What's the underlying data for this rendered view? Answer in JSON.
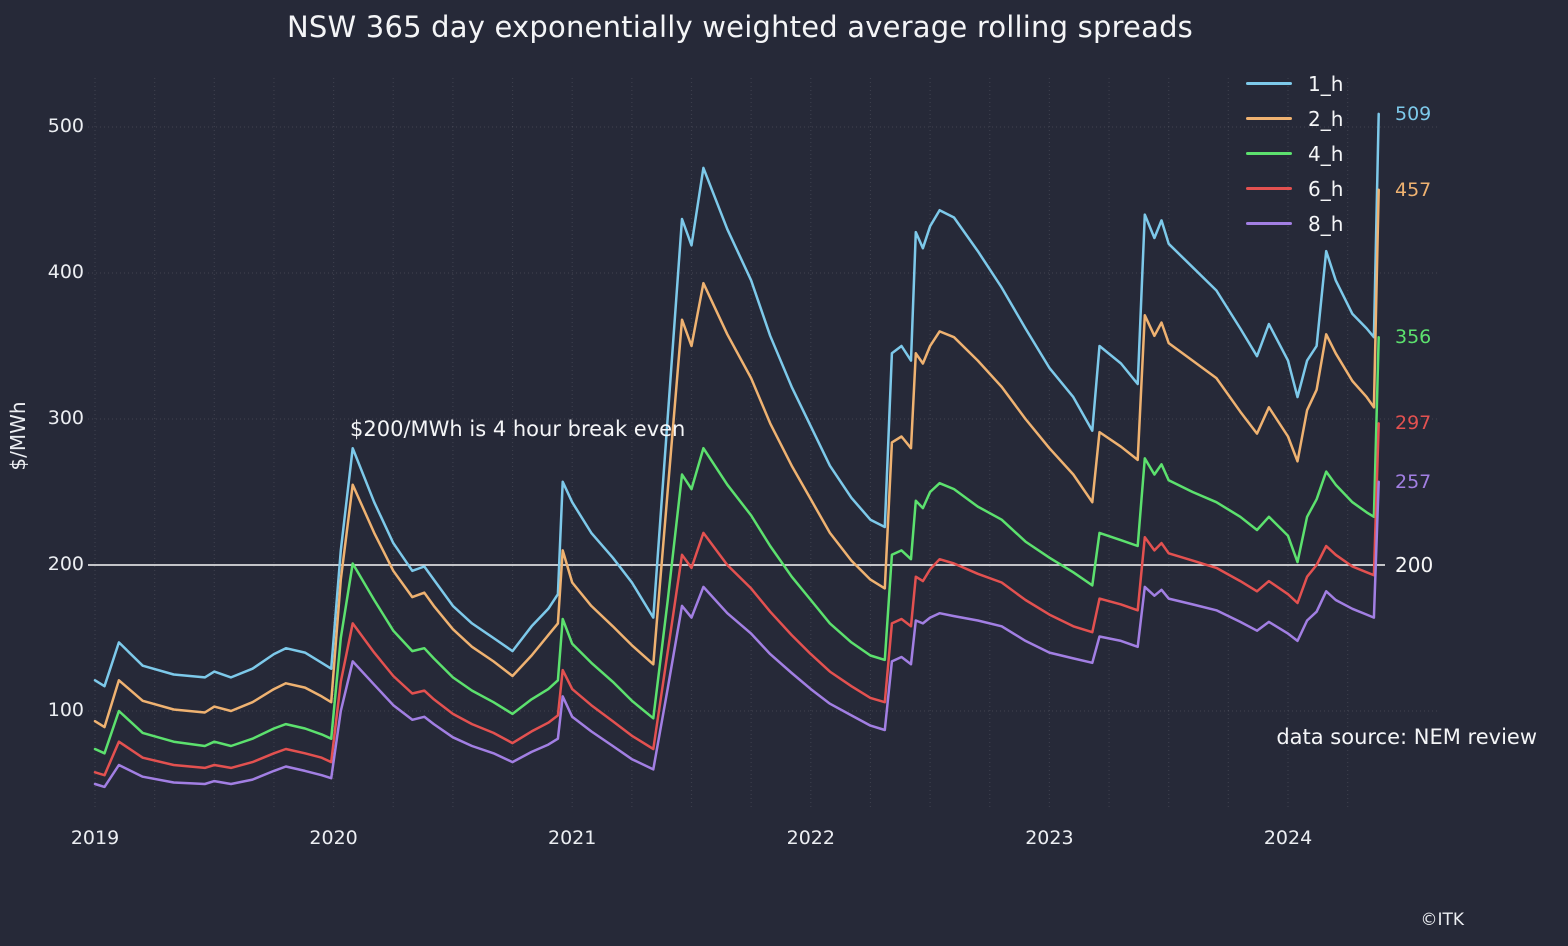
{
  "title": "NSW 365 day exponentially weighted average rolling spreads",
  "ylabel": "$/MWh",
  "annotation": "$200/MWh is 4 hour break even",
  "data_source": "data source: NEM review",
  "copyright": "©ITK",
  "threshold": {
    "value": 200,
    "label": "200",
    "color": "#f7f7f7"
  },
  "colors": {
    "background": "#262938",
    "text": "#f2f3f5",
    "grid": "rgba(255,255,255,0.10)"
  },
  "chart_data": {
    "type": "line",
    "title": "NSW 365 day exponentially weighted average rolling spreads",
    "xlabel": "",
    "ylabel": "$/MWh",
    "legend_position": "upper right",
    "grid": "dotted horizontal at yticks, dotted vertical quarterly",
    "xlim": [
      2018.95,
      2024.45
    ],
    "ylim": [
      40,
      545
    ],
    "yticks": [
      100,
      200,
      300,
      400,
      500
    ],
    "xticks": [
      2019,
      2020,
      2021,
      2022,
      2023,
      2024
    ],
    "reference_line": {
      "y": 200,
      "label": "200"
    },
    "x": [
      2019.0,
      2019.04,
      2019.1,
      2019.2,
      2019.33,
      2019.46,
      2019.5,
      2019.57,
      2019.66,
      2019.75,
      2019.8,
      2019.88,
      2019.95,
      2019.99,
      2020.03,
      2020.08,
      2020.17,
      2020.25,
      2020.33,
      2020.38,
      2020.42,
      2020.5,
      2020.58,
      2020.67,
      2020.75,
      2020.83,
      2020.9,
      2020.94,
      2020.96,
      2021.0,
      2021.08,
      2021.17,
      2021.25,
      2021.34,
      2021.4,
      2021.46,
      2021.5,
      2021.55,
      2021.65,
      2021.75,
      2021.83,
      2021.92,
      2022.0,
      2022.08,
      2022.17,
      2022.25,
      2022.31,
      2022.34,
      2022.38,
      2022.42,
      2022.44,
      2022.47,
      2022.5,
      2022.54,
      2022.6,
      2022.7,
      2022.8,
      2022.9,
      2023.0,
      2023.1,
      2023.18,
      2023.21,
      2023.3,
      2023.37,
      2023.4,
      2023.44,
      2023.47,
      2023.5,
      2023.6,
      2023.7,
      2023.8,
      2023.87,
      2023.92,
      2024.0,
      2024.04,
      2024.08,
      2024.12,
      2024.16,
      2024.2,
      2024.27,
      2024.33,
      2024.36,
      2024.38
    ],
    "series": [
      {
        "name": "1_h",
        "color": "#7dc9ea",
        "end_label": "509",
        "values": [
          121,
          117,
          147,
          131,
          125,
          123,
          127,
          123,
          129,
          139,
          143,
          140,
          133,
          129,
          210,
          280,
          243,
          215,
          196,
          199,
          190,
          172,
          160,
          150,
          141,
          158,
          170,
          180,
          257,
          243,
          222,
          205,
          188,
          164,
          300,
          437,
          419,
          472,
          430,
          395,
          357,
          322,
          295,
          268,
          246,
          231,
          226,
          345,
          350,
          340,
          428,
          417,
          432,
          443,
          438,
          415,
          390,
          362,
          335,
          315,
          292,
          350,
          338,
          324,
          440,
          424,
          436,
          420,
          404,
          388,
          362,
          343,
          365,
          340,
          315,
          340,
          350,
          415,
          395,
          372,
          362,
          356,
          509
        ]
      },
      {
        "name": "2_h",
        "color": "#efb271",
        "end_label": "457",
        "values": [
          93,
          89,
          121,
          107,
          101,
          99,
          103,
          100,
          106,
          115,
          119,
          116,
          110,
          106,
          190,
          255,
          222,
          196,
          178,
          181,
          172,
          156,
          144,
          134,
          124,
          138,
          152,
          160,
          210,
          188,
          172,
          158,
          145,
          132,
          250,
          368,
          350,
          393,
          358,
          328,
          297,
          268,
          245,
          222,
          203,
          190,
          184,
          284,
          288,
          280,
          345,
          338,
          350,
          360,
          356,
          340,
          322,
          300,
          280,
          262,
          243,
          291,
          281,
          272,
          371,
          357,
          366,
          352,
          340,
          328,
          305,
          290,
          308,
          288,
          271,
          306,
          320,
          358,
          345,
          326,
          315,
          308,
          457
        ]
      },
      {
        "name": "4_h",
        "color": "#5ce16e",
        "end_label": "356",
        "values": [
          74,
          71,
          100,
          85,
          79,
          76,
          79,
          76,
          81,
          88,
          91,
          88,
          84,
          81,
          150,
          201,
          176,
          155,
          141,
          143,
          136,
          123,
          114,
          106,
          98,
          108,
          115,
          121,
          163,
          146,
          133,
          120,
          107,
          95,
          175,
          262,
          252,
          280,
          255,
          234,
          213,
          192,
          176,
          160,
          147,
          138,
          135,
          207,
          210,
          204,
          244,
          239,
          250,
          256,
          252,
          240,
          231,
          216,
          205,
          195,
          186,
          222,
          217,
          213,
          273,
          262,
          269,
          258,
          250,
          243,
          233,
          224,
          233,
          220,
          202,
          233,
          245,
          264,
          255,
          243,
          236,
          233,
          356
        ]
      },
      {
        "name": "6_h",
        "color": "#e35150",
        "end_label": "297",
        "values": [
          58,
          56,
          79,
          68,
          63,
          61,
          63,
          61,
          65,
          71,
          74,
          71,
          68,
          65,
          120,
          160,
          140,
          124,
          112,
          114,
          108,
          98,
          91,
          85,
          78,
          86,
          92,
          97,
          128,
          115,
          104,
          93,
          83,
          74,
          140,
          207,
          198,
          222,
          200,
          184,
          168,
          152,
          139,
          127,
          117,
          109,
          106,
          160,
          163,
          158,
          192,
          189,
          197,
          204,
          201,
          194,
          188,
          176,
          166,
          158,
          154,
          177,
          173,
          169,
          219,
          210,
          215,
          208,
          203,
          198,
          189,
          182,
          189,
          180,
          174,
          192,
          200,
          213,
          207,
          199,
          195,
          193,
          297
        ]
      },
      {
        "name": "8_h",
        "color": "#a27fe3",
        "end_label": "257",
        "values": [
          50,
          48,
          63,
          55,
          51,
          50,
          52,
          50,
          53,
          59,
          62,
          59,
          56,
          54,
          100,
          134,
          118,
          104,
          94,
          96,
          91,
          82,
          76,
          71,
          65,
          72,
          77,
          81,
          110,
          96,
          86,
          76,
          67,
          60,
          115,
          172,
          164,
          185,
          167,
          153,
          139,
          126,
          115,
          105,
          97,
          90,
          87,
          134,
          137,
          132,
          162,
          160,
          164,
          167,
          165,
          162,
          158,
          148,
          140,
          136,
          133,
          151,
          148,
          144,
          185,
          179,
          183,
          177,
          173,
          169,
          161,
          155,
          161,
          153,
          148,
          162,
          168,
          182,
          176,
          170,
          166,
          164,
          257
        ]
      }
    ]
  }
}
